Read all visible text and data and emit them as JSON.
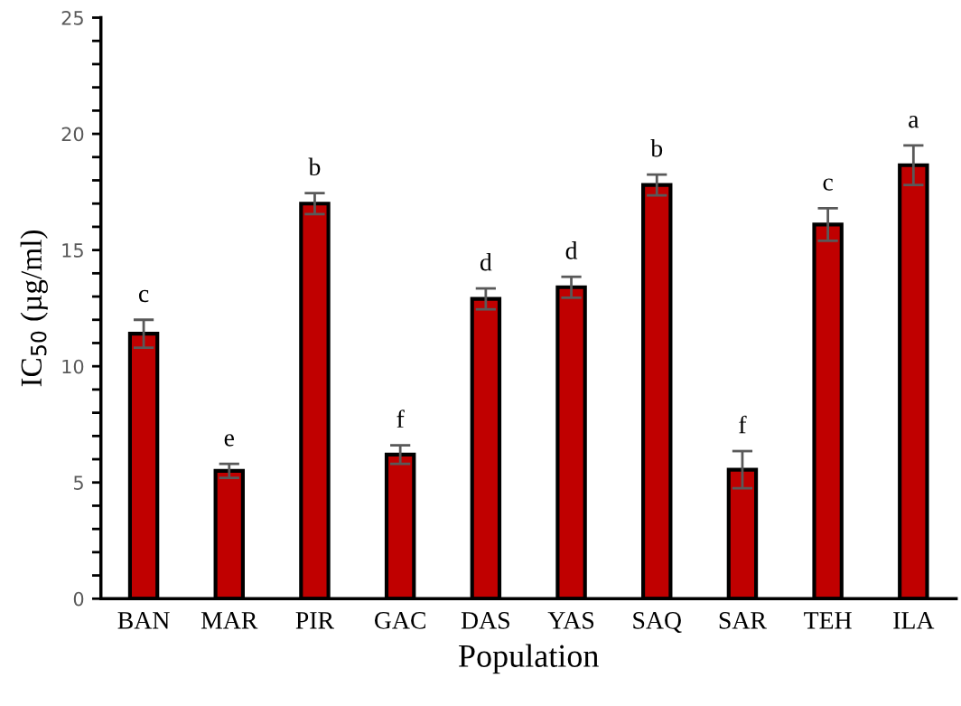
{
  "chart_data": {
    "type": "bar",
    "xlabel": "Population",
    "ylabel": "IC$_{50}$ (µg/ml)",
    "categories": [
      "BAN",
      "MAR",
      "PIR",
      "GAC",
      "DAS",
      "YAS",
      "SAQ",
      "SAR",
      "TEH",
      "ILA"
    ],
    "values": [
      11.4,
      5.5,
      17.0,
      6.2,
      12.9,
      13.4,
      17.8,
      5.55,
      16.1,
      18.65
    ],
    "errors": [
      0.6,
      0.3,
      0.45,
      0.4,
      0.45,
      0.45,
      0.45,
      0.8,
      0.7,
      0.85
    ],
    "color": "#c00000",
    "ylim": [
      0,
      25
    ],
    "yticks": [
      0,
      {
        "value": 1,
        "label": null
      },
      {
        "value": 2,
        "label": null
      },
      {
        "value": 3,
        "label": null
      },
      {
        "value": 4,
        "label": null
      },
      5,
      {
        "value": 6,
        "label": null
      },
      {
        "value": 7,
        "label": null
      },
      {
        "value": 8,
        "label": null
      },
      {
        "value": 9,
        "label": null
      },
      10,
      {
        "value": 11,
        "label": null
      },
      {
        "value": 12,
        "label": null
      },
      {
        "value": 13,
        "label": null
      },
      {
        "value": 14,
        "label": null
      },
      15,
      {
        "value": 16,
        "label": null
      },
      {
        "value": 17,
        "label": null
      },
      {
        "value": 18,
        "label": null
      },
      {
        "value": 19,
        "label": null
      },
      20,
      {
        "value": 21,
        "label": null
      },
      {
        "value": 22,
        "label": null
      },
      {
        "value": 23,
        "label": null
      },
      {
        "value": 24,
        "label": null
      },
      25
    ],
    "annotations": [
      {
        "text": "c",
        "x": "BAN",
        "y": 12.0
      },
      {
        "text": "e",
        "x": "MAR",
        "y": 5.8
      },
      {
        "text": "b",
        "x": "PIR",
        "y": 17.45
      },
      {
        "text": "f",
        "x": "GAC",
        "y": 6.6
      },
      {
        "text": "d",
        "x": "DAS",
        "y": 13.35
      },
      {
        "text": "d",
        "x": "YAS",
        "y": 13.85
      },
      {
        "text": "b",
        "x": "SAQ",
        "y": 18.25
      },
      {
        "text": "f",
        "x": "SAR",
        "y": 6.35
      },
      {
        "text": "c",
        "x": "TEH",
        "y": 16.8
      },
      {
        "text": "a",
        "x": "ILA",
        "y": 19.5
      }
    ],
    "grid": false,
    "legend": false
  }
}
